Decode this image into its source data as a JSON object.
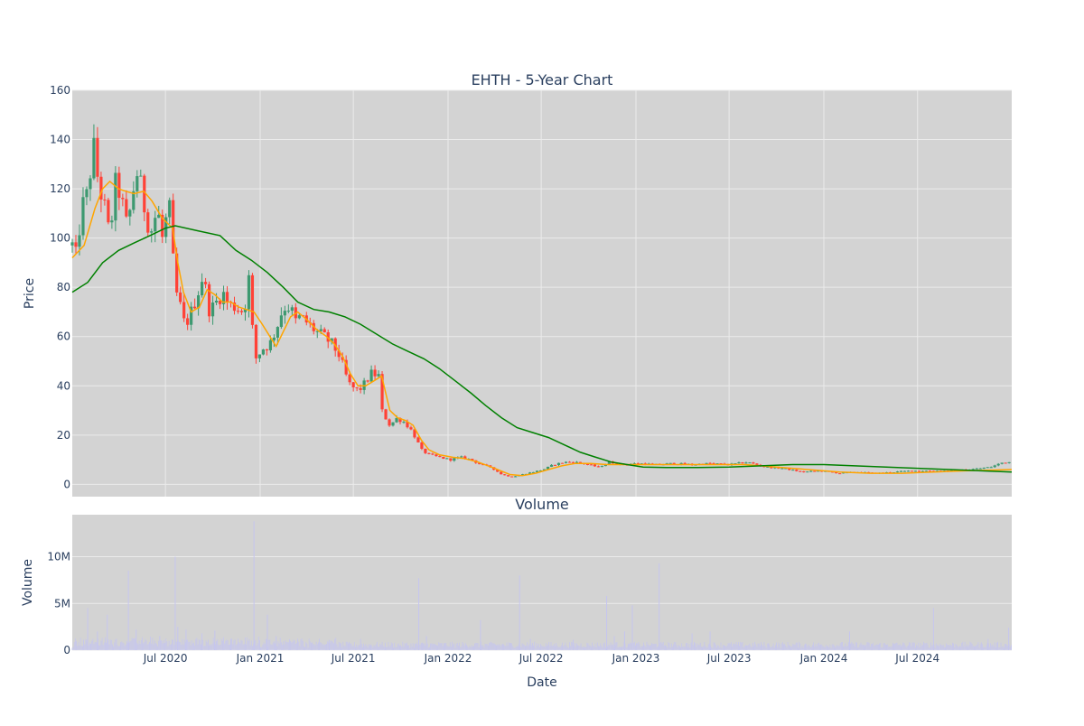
{
  "chart_data": {
    "type": "candlestick",
    "title": "EHTH - 5-Year Chart",
    "colors": {
      "plot_bg": "#d3d3d3",
      "grid": "#ebebeb",
      "up": "#3d9970",
      "down": "#ff4136",
      "ma_short": "#ffa500",
      "ma_long": "#008000",
      "volume": "#c6c6ee"
    },
    "price_panel": {
      "ylabel": "Price",
      "ylim": [
        -5,
        160
      ],
      "yticks": [
        0,
        20,
        40,
        60,
        80,
        100,
        120,
        140,
        160
      ],
      "grid": true
    },
    "volume_panel": {
      "title": "Volume",
      "ylabel": "Volume",
      "xlabel": "Date",
      "ylim": [
        0,
        14500000
      ],
      "yticks": [
        {
          "value": 0,
          "label": "0"
        },
        {
          "value": 5000000,
          "label": "5M"
        },
        {
          "value": 10000000,
          "label": "10M"
        }
      ],
      "grid": true
    },
    "x_range": [
      "2020-01-02",
      "2024-12-31"
    ],
    "x_ticks": [
      {
        "date": "2020-07-01",
        "label": "Jul 2020"
      },
      {
        "date": "2021-01-01",
        "label": "Jan 2021"
      },
      {
        "date": "2021-07-01",
        "label": "Jul 2021"
      },
      {
        "date": "2022-01-01",
        "label": "Jan 2022"
      },
      {
        "date": "2022-07-01",
        "label": "Jul 2022"
      },
      {
        "date": "2023-01-01",
        "label": "Jan 2023"
      },
      {
        "date": "2023-07-01",
        "label": "Jul 2023"
      },
      {
        "date": "2024-01-01",
        "label": "Jan 2024"
      },
      {
        "date": "2024-07-01",
        "label": "Jul 2024"
      }
    ],
    "close_trend": [
      [
        "2020-01-02",
        97
      ],
      [
        "2020-01-10",
        92
      ],
      [
        "2020-01-20",
        112
      ],
      [
        "2020-02-01",
        118
      ],
      [
        "2020-02-12",
        138
      ],
      [
        "2020-02-22",
        122
      ],
      [
        "2020-03-05",
        112
      ],
      [
        "2020-03-15",
        100
      ],
      [
        "2020-03-25",
        122
      ],
      [
        "2020-04-05",
        118
      ],
      [
        "2020-04-15",
        105
      ],
      [
        "2020-04-25",
        112
      ],
      [
        "2020-05-05",
        128
      ],
      [
        "2020-05-15",
        120
      ],
      [
        "2020-05-25",
        108
      ],
      [
        "2020-06-05",
        103
      ],
      [
        "2020-06-15",
        112
      ],
      [
        "2020-06-25",
        100
      ],
      [
        "2020-07-05",
        110
      ],
      [
        "2020-07-12",
        112
      ],
      [
        "2020-07-18",
        80
      ],
      [
        "2020-07-28",
        74
      ],
      [
        "2020-08-08",
        64
      ],
      [
        "2020-08-20",
        70
      ],
      [
        "2020-09-01",
        77
      ],
      [
        "2020-09-12",
        85
      ],
      [
        "2020-09-25",
        70
      ],
      [
        "2020-10-08",
        74
      ],
      [
        "2020-10-20",
        78
      ],
      [
        "2020-11-01",
        73
      ],
      [
        "2020-11-15",
        72
      ],
      [
        "2020-12-01",
        70
      ],
      [
        "2020-12-08",
        82
      ],
      [
        "2020-12-12",
        85
      ],
      [
        "2020-12-20",
        50
      ],
      [
        "2021-01-05",
        55
      ],
      [
        "2021-01-20",
        57
      ],
      [
        "2021-02-01",
        63
      ],
      [
        "2021-02-15",
        72
      ],
      [
        "2021-03-01",
        72
      ],
      [
        "2021-03-10",
        66
      ],
      [
        "2021-03-20",
        68
      ],
      [
        "2021-04-05",
        65
      ],
      [
        "2021-04-20",
        62
      ],
      [
        "2021-05-05",
        60
      ],
      [
        "2021-05-20",
        57
      ],
      [
        "2021-06-05",
        52
      ],
      [
        "2021-06-15",
        45
      ],
      [
        "2021-06-25",
        40
      ],
      [
        "2021-07-10",
        38
      ],
      [
        "2021-07-20",
        40
      ],
      [
        "2021-08-05",
        45
      ],
      [
        "2021-08-20",
        44
      ],
      [
        "2021-08-25",
        30
      ],
      [
        "2021-09-10",
        24
      ],
      [
        "2021-09-25",
        27
      ],
      [
        "2021-10-10",
        25
      ],
      [
        "2021-10-25",
        21
      ],
      [
        "2021-11-10",
        14
      ],
      [
        "2021-11-25",
        12
      ],
      [
        "2021-12-15",
        11
      ],
      [
        "2022-01-05",
        10
      ],
      [
        "2022-01-25",
        11
      ],
      [
        "2022-02-15",
        10
      ],
      [
        "2022-03-05",
        8
      ],
      [
        "2022-03-25",
        7
      ],
      [
        "2022-04-15",
        4
      ],
      [
        "2022-05-05",
        3
      ],
      [
        "2022-05-25",
        4
      ],
      [
        "2022-06-15",
        5
      ],
      [
        "2022-07-05",
        6
      ],
      [
        "2022-07-25",
        8
      ],
      [
        "2022-08-15",
        9
      ],
      [
        "2022-09-05",
        9
      ],
      [
        "2022-10-01",
        8
      ],
      [
        "2022-10-20",
        7
      ],
      [
        "2022-11-10",
        9
      ],
      [
        "2022-12-05",
        8
      ],
      [
        "2023-01-05",
        8.5
      ],
      [
        "2023-02-10",
        8
      ],
      [
        "2023-03-15",
        8.5
      ],
      [
        "2023-04-20",
        8
      ],
      [
        "2023-05-25",
        8.5
      ],
      [
        "2023-06-30",
        8
      ],
      [
        "2023-08-05",
        9
      ],
      [
        "2023-09-10",
        7
      ],
      [
        "2023-10-15",
        6.5
      ],
      [
        "2023-11-20",
        5
      ],
      [
        "2023-12-25",
        5.5
      ],
      [
        "2024-01-30",
        4.5
      ],
      [
        "2024-03-05",
        5
      ],
      [
        "2024-04-10",
        4.5
      ],
      [
        "2024-05-15",
        5
      ],
      [
        "2024-06-20",
        5.5
      ],
      [
        "2024-07-25",
        5.5
      ],
      [
        "2024-09-01",
        5.5
      ],
      [
        "2024-10-10",
        6
      ],
      [
        "2024-11-20",
        7
      ],
      [
        "2024-12-15",
        9
      ],
      [
        "2024-12-31",
        9
      ]
    ],
    "ma_short": [
      [
        "2020-01-02",
        92
      ],
      [
        "2020-01-25",
        97
      ],
      [
        "2020-02-15",
        112
      ],
      [
        "2020-03-01",
        120
      ],
      [
        "2020-03-15",
        123
      ],
      [
        "2020-04-01",
        120
      ],
      [
        "2020-04-15",
        119
      ],
      [
        "2020-05-01",
        118
      ],
      [
        "2020-05-20",
        119
      ],
      [
        "2020-06-05",
        115
      ],
      [
        "2020-06-25",
        108
      ],
      [
        "2020-07-15",
        104
      ],
      [
        "2020-07-25",
        90
      ],
      [
        "2020-08-05",
        78
      ],
      [
        "2020-08-20",
        70
      ],
      [
        "2020-09-05",
        72
      ],
      [
        "2020-09-20",
        79
      ],
      [
        "2020-10-05",
        77
      ],
      [
        "2020-10-20",
        74
      ],
      [
        "2020-11-05",
        74
      ],
      [
        "2020-11-20",
        72
      ],
      [
        "2020-12-05",
        71
      ],
      [
        "2020-12-20",
        70
      ],
      [
        "2021-01-05",
        65
      ],
      [
        "2021-01-20",
        60
      ],
      [
        "2021-02-01",
        56
      ],
      [
        "2021-02-15",
        62
      ],
      [
        "2021-03-01",
        68
      ],
      [
        "2021-03-15",
        70
      ],
      [
        "2021-04-01",
        67
      ],
      [
        "2021-04-20",
        63
      ],
      [
        "2021-05-10",
        60
      ],
      [
        "2021-05-25",
        57
      ],
      [
        "2021-06-10",
        52
      ],
      [
        "2021-06-25",
        45
      ],
      [
        "2021-07-10",
        40
      ],
      [
        "2021-07-25",
        40
      ],
      [
        "2021-08-10",
        42
      ],
      [
        "2021-08-25",
        44
      ],
      [
        "2021-09-10",
        30
      ],
      [
        "2021-09-25",
        27
      ],
      [
        "2021-10-10",
        26
      ],
      [
        "2021-10-25",
        24
      ],
      [
        "2021-11-10",
        18
      ],
      [
        "2021-11-25",
        14
      ],
      [
        "2021-12-15",
        12
      ],
      [
        "2022-01-10",
        11
      ],
      [
        "2022-02-01",
        10.5
      ],
      [
        "2022-03-01",
        9
      ],
      [
        "2022-04-01",
        6.5
      ],
      [
        "2022-05-01",
        4
      ],
      [
        "2022-05-25",
        3.5
      ],
      [
        "2022-06-20",
        4.5
      ],
      [
        "2022-07-15",
        6
      ],
      [
        "2022-08-10",
        7.5
      ],
      [
        "2022-09-05",
        8.5
      ],
      [
        "2022-10-05",
        8.5
      ],
      [
        "2022-11-05",
        8
      ],
      [
        "2022-12-05",
        8
      ],
      [
        "2023-02-01",
        8
      ],
      [
        "2023-04-01",
        8
      ],
      [
        "2023-06-01",
        8
      ],
      [
        "2023-08-01",
        8
      ],
      [
        "2023-10-01",
        7
      ],
      [
        "2023-12-01",
        6
      ],
      [
        "2024-02-01",
        5
      ],
      [
        "2024-04-01",
        4.5
      ],
      [
        "2024-06-01",
        4.5
      ],
      [
        "2024-08-01",
        5
      ],
      [
        "2024-10-01",
        5.5
      ],
      [
        "2024-12-31",
        6
      ]
    ],
    "ma_long": [
      [
        "2020-01-02",
        78
      ],
      [
        "2020-02-01",
        82
      ],
      [
        "2020-03-01",
        90
      ],
      [
        "2020-04-01",
        95
      ],
      [
        "2020-05-01",
        98
      ],
      [
        "2020-06-01",
        101
      ],
      [
        "2020-07-01",
        104
      ],
      [
        "2020-07-20",
        105
      ],
      [
        "2020-09-01",
        103
      ],
      [
        "2020-10-15",
        101
      ],
      [
        "2020-11-15",
        95
      ],
      [
        "2020-12-15",
        91
      ],
      [
        "2021-01-15",
        86
      ],
      [
        "2021-02-15",
        80
      ],
      [
        "2021-03-15",
        74
      ],
      [
        "2021-04-15",
        71
      ],
      [
        "2021-05-15",
        70
      ],
      [
        "2021-06-15",
        68
      ],
      [
        "2021-07-15",
        65
      ],
      [
        "2021-08-15",
        61
      ],
      [
        "2021-09-15",
        57
      ],
      [
        "2021-10-15",
        54
      ],
      [
        "2021-11-15",
        51
      ],
      [
        "2021-12-15",
        47
      ],
      [
        "2022-01-15",
        42
      ],
      [
        "2022-02-15",
        37
      ],
      [
        "2022-03-15",
        32
      ],
      [
        "2022-04-15",
        27
      ],
      [
        "2022-05-15",
        23
      ],
      [
        "2022-06-15",
        21
      ],
      [
        "2022-07-15",
        19
      ],
      [
        "2022-08-15",
        16
      ],
      [
        "2022-09-15",
        13
      ],
      [
        "2022-10-15",
        11
      ],
      [
        "2022-11-15",
        9
      ],
      [
        "2022-12-15",
        8
      ],
      [
        "2023-01-15",
        7
      ],
      [
        "2023-03-01",
        6.8
      ],
      [
        "2023-05-01",
        6.8
      ],
      [
        "2023-07-01",
        7
      ],
      [
        "2023-09-01",
        7.5
      ],
      [
        "2023-11-01",
        8
      ],
      [
        "2024-01-01",
        8
      ],
      [
        "2024-03-01",
        7.5
      ],
      [
        "2024-05-01",
        7
      ],
      [
        "2024-07-01",
        6.5
      ],
      [
        "2024-09-01",
        6
      ],
      [
        "2024-11-01",
        5.5
      ],
      [
        "2024-12-31",
        5
      ]
    ],
    "volume_spikes": [
      [
        "2020-02-01",
        4500000
      ],
      [
        "2020-02-20",
        2000000
      ],
      [
        "2020-03-10",
        3800000
      ],
      [
        "2020-04-20",
        8500000
      ],
      [
        "2020-05-05",
        2200000
      ],
      [
        "2020-06-20",
        1500000
      ],
      [
        "2020-07-20",
        10000000
      ],
      [
        "2020-07-25",
        2500000
      ],
      [
        "2020-08-10",
        2200000
      ],
      [
        "2020-09-10",
        1800000
      ],
      [
        "2020-10-05",
        2100000
      ],
      [
        "2020-11-05",
        1200000
      ],
      [
        "2020-12-20",
        13800000
      ],
      [
        "2021-01-15",
        3800000
      ],
      [
        "2021-02-01",
        1500000
      ],
      [
        "2021-05-15",
        1100000
      ],
      [
        "2021-07-15",
        1200000
      ],
      [
        "2021-11-05",
        7700000
      ],
      [
        "2021-11-20",
        1500000
      ],
      [
        "2022-03-05",
        3200000
      ],
      [
        "2022-05-20",
        8000000
      ],
      [
        "2022-06-10",
        1200000
      ],
      [
        "2022-09-01",
        1100000
      ],
      [
        "2022-11-05",
        5800000
      ],
      [
        "2022-11-20",
        1500000
      ],
      [
        "2022-12-10",
        2000000
      ],
      [
        "2022-12-25",
        4800000
      ],
      [
        "2023-02-15",
        9300000
      ],
      [
        "2023-04-20",
        1800000
      ],
      [
        "2023-05-25",
        2000000
      ],
      [
        "2024-02-20",
        2000000
      ],
      [
        "2024-08-01",
        4500000
      ],
      [
        "2024-11-15",
        1200000
      ],
      [
        "2024-12-25",
        2400000
      ]
    ]
  }
}
